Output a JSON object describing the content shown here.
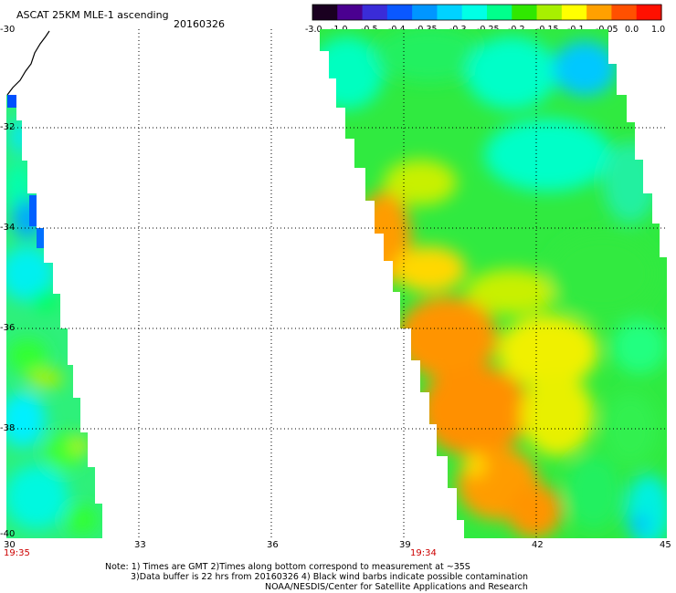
{
  "header": {
    "title": "ASCAT 25KM MLE-1 ascending",
    "date": "20160326"
  },
  "colorbar": {
    "labels": [
      "-3.0",
      "-1.0",
      "-0.5",
      "-0.4",
      "-0.35",
      "-0.3",
      "-0.25",
      "-0.2",
      "-0.15",
      "-0.1",
      "-0.05",
      "0.0",
      "1.0"
    ],
    "colors": [
      "#1a0020",
      "#4a0090",
      "#3a2cd8",
      "#0a58ff",
      "#0096ff",
      "#00d2ff",
      "#00ffe6",
      "#00ff8c",
      "#30e800",
      "#a8f000",
      "#ffff00",
      "#ffa000",
      "#ff5000",
      "#ff1000"
    ]
  },
  "map": {
    "lat_labels": [
      "-30",
      "-32",
      "-34",
      "-36",
      "-38",
      "-40"
    ],
    "lon_labels": [
      "30",
      "33",
      "36",
      "39",
      "42",
      "45"
    ],
    "pass_times": [
      "19:35",
      "19:34"
    ]
  },
  "notes": {
    "line1": "Note: 1) Times are GMT 2)Times along bottom correspond to measurement at ~35S",
    "line2": "3)Data buffer is 22 hrs from 20160326 4) Black wind barbs indicate possible contamination",
    "line3": "NOAA/NESDIS/Center for Satellite Applications and Research"
  }
}
